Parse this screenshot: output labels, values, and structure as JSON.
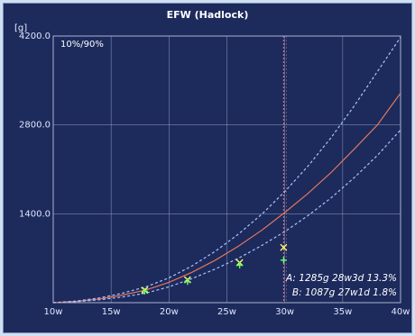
{
  "chart_data": {
    "type": "line",
    "title": "EFW (Hadlock)",
    "ylabel": "[g]",
    "xlabel": "",
    "percentile_label": "10%/90%",
    "x_ticks": [
      "10w",
      "15w",
      "20w",
      "25w",
      "30w",
      "35w",
      "40w"
    ],
    "y_ticks": [
      "1400.0",
      "2800.0",
      "4200.0"
    ],
    "xlim": [
      10,
      40
    ],
    "ylim": [
      0,
      4200
    ],
    "grid": true,
    "series": [
      {
        "style": "median",
        "color": "#e0775c",
        "x": [
          10,
          12,
          14,
          16,
          18,
          20,
          22,
          24,
          26,
          28,
          30,
          32,
          34,
          36,
          38,
          40
        ],
        "y": [
          0,
          20,
          60,
          120,
          200,
          320,
          480,
          670,
          890,
          1140,
          1420,
          1720,
          2050,
          2420,
          2800,
          3300
        ]
      },
      {
        "style": "p90",
        "color": "#a9c2ff",
        "x": [
          10,
          12,
          14,
          16,
          18,
          20,
          22,
          24,
          26,
          28,
          30,
          32,
          34,
          36,
          38,
          40
        ],
        "y": [
          0,
          25,
          75,
          150,
          250,
          390,
          580,
          810,
          1080,
          1390,
          1750,
          2150,
          2600,
          3100,
          3640,
          4180
        ]
      },
      {
        "style": "p10",
        "color": "#a9c2ff",
        "x": [
          10,
          12,
          14,
          16,
          18,
          20,
          22,
          24,
          26,
          28,
          30,
          32,
          34,
          36,
          38,
          40
        ],
        "y": [
          0,
          15,
          45,
          90,
          150,
          250,
          380,
          530,
          700,
          900,
          1120,
          1370,
          1650,
          1970,
          2320,
          2720
        ]
      }
    ],
    "points": [
      {
        "marker": "x",
        "x": 17.9,
        "y": 195
      },
      {
        "marker": "x",
        "x": 21.6,
        "y": 360
      },
      {
        "marker": "x",
        "x": 26.1,
        "y": 630
      },
      {
        "marker": "x",
        "x": 29.9,
        "y": 870
      },
      {
        "marker": "+",
        "x": 17.9,
        "y": 180
      },
      {
        "marker": "+",
        "x": 21.6,
        "y": 330
      },
      {
        "marker": "+",
        "x": 26.1,
        "y": 590
      },
      {
        "marker": "+",
        "x": 29.9,
        "y": 670
      }
    ],
    "cursor_x": 29.9,
    "annotations": [
      "A: 1285g 28w3d 13.3%",
      "B: 1087g 27w1d 1.8%"
    ]
  },
  "colors": {
    "background": "#1d2a5c",
    "grid": "#a9b4d2",
    "median": "#e0775c",
    "percentile": "#a9c2ff",
    "marker_a": "#ffff66",
    "marker_b": "#66ff66",
    "cursor": "#e07b8f"
  }
}
